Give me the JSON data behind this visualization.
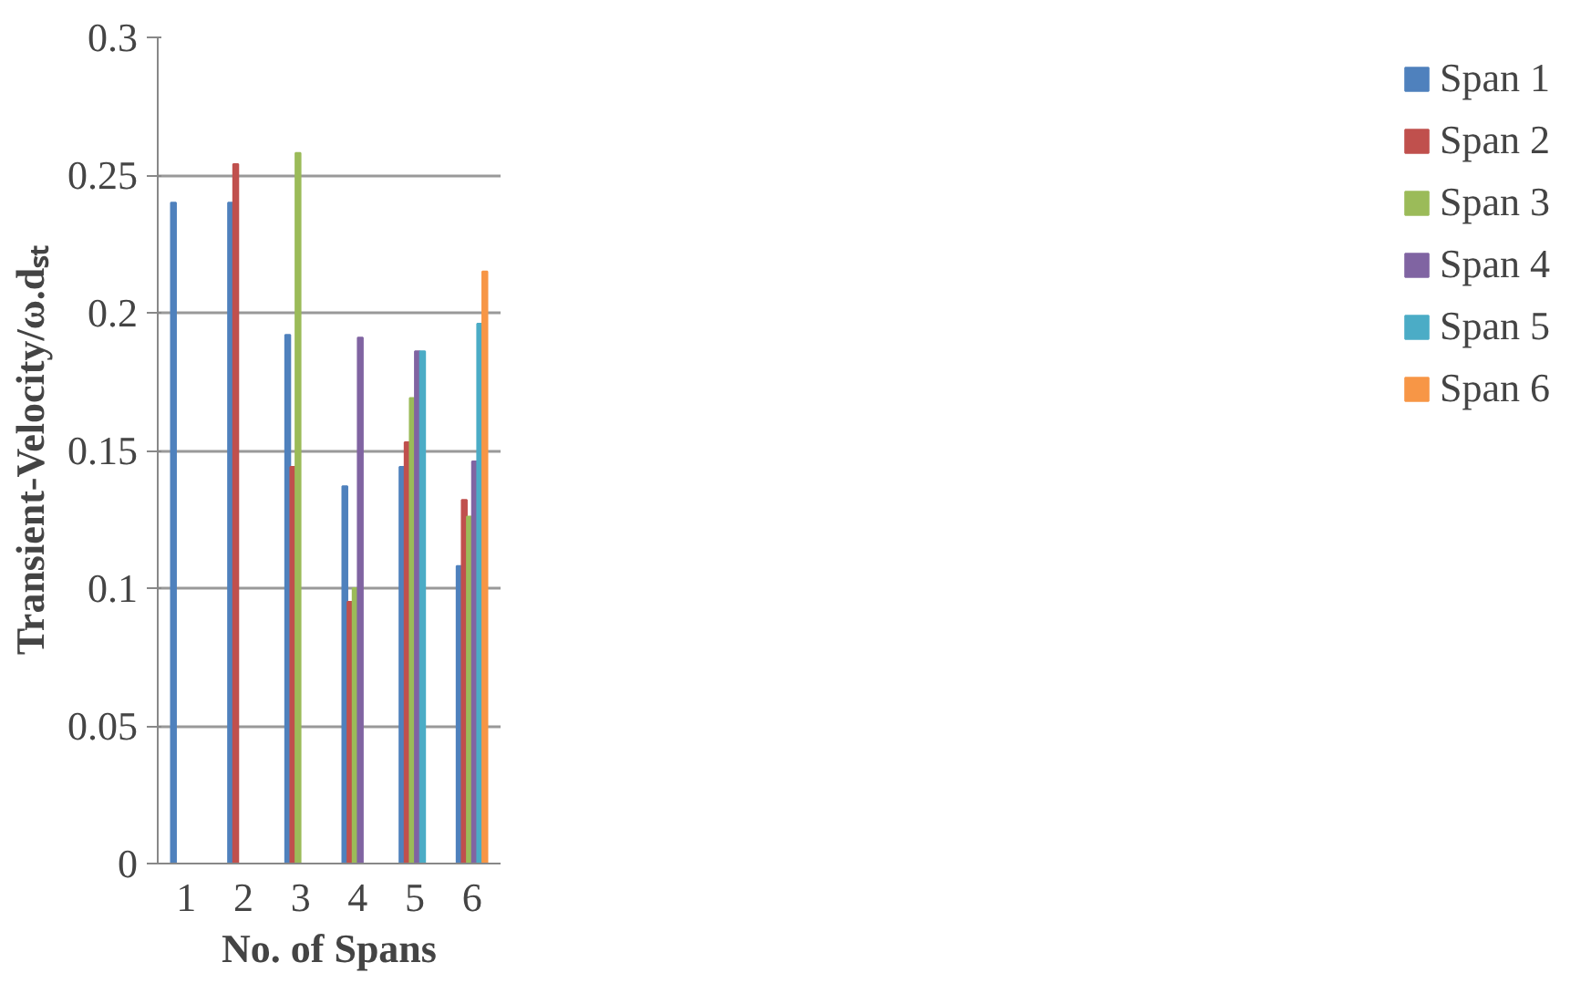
{
  "chart_data": {
    "type": "bar",
    "xlabel": "No. of Spans",
    "ylabel": "Transient-Velocity/ω.dₛₜ",
    "categories": [
      "1",
      "2",
      "3",
      "4",
      "5",
      "6"
    ],
    "series": [
      {
        "name": "Span 1",
        "color": "#4f81bd",
        "values": [
          0.24,
          0.24,
          0.192,
          0.137,
          0.144,
          0.108
        ]
      },
      {
        "name": "Span 2",
        "color": "#c0504d",
        "values": [
          null,
          0.254,
          0.144,
          0.095,
          0.153,
          0.132
        ]
      },
      {
        "name": "Span 3",
        "color": "#9bbb59",
        "values": [
          null,
          null,
          0.258,
          0.1,
          0.169,
          0.126
        ]
      },
      {
        "name": "Span 4",
        "color": "#8064a2",
        "values": [
          null,
          null,
          null,
          0.191,
          0.186,
          0.146
        ]
      },
      {
        "name": "Span 5",
        "color": "#4bacc6",
        "values": [
          null,
          null,
          null,
          null,
          0.186,
          0.196
        ]
      },
      {
        "name": "Span 6",
        "color": "#f79646",
        "values": [
          null,
          null,
          null,
          null,
          null,
          0.215
        ]
      }
    ],
    "ylim": [
      0,
      0.3
    ],
    "yticks": [
      0,
      0.05,
      0.1,
      0.15,
      0.2,
      0.25,
      0.3
    ],
    "grid": "y",
    "legend": "right"
  }
}
